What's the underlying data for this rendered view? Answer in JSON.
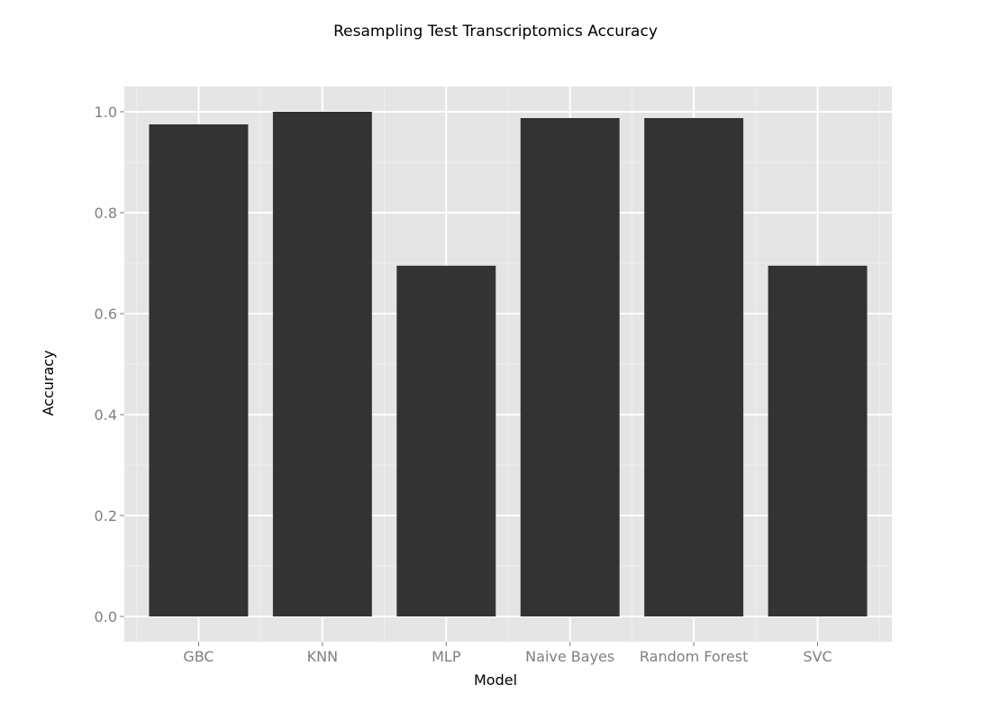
{
  "chart_data": {
    "type": "bar",
    "title": "Resampling Test Transcriptomics Accuracy",
    "xlabel": "Model",
    "ylabel": "Accuracy",
    "categories": [
      "GBC",
      "KNN",
      "MLP",
      "Naive Bayes",
      "Random Forest",
      "SVC"
    ],
    "values": [
      0.975,
      1.0,
      0.695,
      0.9875,
      0.9875,
      0.695
    ],
    "yticks": [
      "0.0",
      "0.2",
      "0.4",
      "0.6",
      "0.8",
      "1.0"
    ],
    "ylim": [
      -0.05,
      1.05
    ],
    "grid": true,
    "colors": {
      "bar": "#333333",
      "panel": "#e5e5e5",
      "grid_major": "#ffffff",
      "grid_minor": "#f0f0f0",
      "tick_text": "#7f7f7f"
    }
  }
}
